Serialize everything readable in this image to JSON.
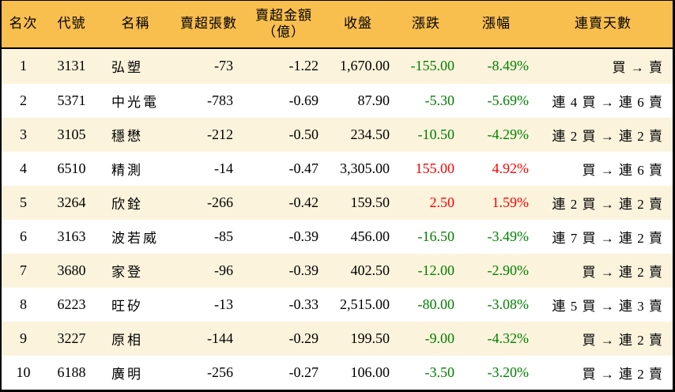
{
  "colors": {
    "header_bg": "#F8BE4E",
    "stripe_bg": "#FCF3DC",
    "down_green": "#008000",
    "up_red": "#FB0000",
    "border": "#000000"
  },
  "chart_data": {
    "type": "table",
    "title": "",
    "legend": "漲跌/漲幅: 綠=下跌, 紅=上漲; 隔行底色交替",
    "columns": [
      {
        "key": "rank",
        "label": "名次"
      },
      {
        "key": "code",
        "label": "代號"
      },
      {
        "key": "name",
        "label": "名稱"
      },
      {
        "key": "sold_lots",
        "label": "賣超張數"
      },
      {
        "key": "sold_amount",
        "label": "賣超金額\n（億）"
      },
      {
        "key": "close",
        "label": "收盤"
      },
      {
        "key": "change",
        "label": "漲跌"
      },
      {
        "key": "change_pct",
        "label": "漲幅"
      },
      {
        "key": "streak",
        "label": "連賣天數"
      }
    ],
    "rows": [
      {
        "rank": "1",
        "code": "3131",
        "name": "弘塑",
        "sold_lots": "-73",
        "sold_amount": "-1.22",
        "close": "1,670.00",
        "change": "-155.00",
        "change_pct": "-8.49%",
        "direction": "down",
        "streak": "買 → 賣"
      },
      {
        "rank": "2",
        "code": "5371",
        "name": "中光電",
        "sold_lots": "-783",
        "sold_amount": "-0.69",
        "close": "87.90",
        "change": "-5.30",
        "change_pct": "-5.69%",
        "direction": "down",
        "streak": "連 4 買 → 連 6 賣"
      },
      {
        "rank": "3",
        "code": "3105",
        "name": "穩懋",
        "sold_lots": "-212",
        "sold_amount": "-0.50",
        "close": "234.50",
        "change": "-10.50",
        "change_pct": "-4.29%",
        "direction": "down",
        "streak": "連 2 買 → 連 2 賣"
      },
      {
        "rank": "4",
        "code": "6510",
        "name": "精測",
        "sold_lots": "-14",
        "sold_amount": "-0.47",
        "close": "3,305.00",
        "change": "155.00",
        "change_pct": "4.92%",
        "direction": "up",
        "streak": "買 → 連 6 賣"
      },
      {
        "rank": "5",
        "code": "3264",
        "name": "欣銓",
        "sold_lots": "-266",
        "sold_amount": "-0.42",
        "close": "159.50",
        "change": "2.50",
        "change_pct": "1.59%",
        "direction": "up",
        "streak": "連 2 買 → 連 2 賣"
      },
      {
        "rank": "6",
        "code": "3163",
        "name": "波若威",
        "sold_lots": "-85",
        "sold_amount": "-0.39",
        "close": "456.00",
        "change": "-16.50",
        "change_pct": "-3.49%",
        "direction": "down",
        "streak": "連 7 買 → 連 2 賣"
      },
      {
        "rank": "7",
        "code": "3680",
        "name": "家登",
        "sold_lots": "-96",
        "sold_amount": "-0.39",
        "close": "402.50",
        "change": "-12.00",
        "change_pct": "-2.90%",
        "direction": "down",
        "streak": "買 → 連 2 賣"
      },
      {
        "rank": "8",
        "code": "6223",
        "name": "旺矽",
        "sold_lots": "-13",
        "sold_amount": "-0.33",
        "close": "2,515.00",
        "change": "-80.00",
        "change_pct": "-3.08%",
        "direction": "down",
        "streak": "連 5 買 → 連 3 賣"
      },
      {
        "rank": "9",
        "code": "3227",
        "name": "原相",
        "sold_lots": "-144",
        "sold_amount": "-0.29",
        "close": "199.50",
        "change": "-9.00",
        "change_pct": "-4.32%",
        "direction": "down",
        "streak": "買 → 連 2 賣"
      },
      {
        "rank": "10",
        "code": "6188",
        "name": "廣明",
        "sold_lots": "-256",
        "sold_amount": "-0.27",
        "close": "106.00",
        "change": "-3.50",
        "change_pct": "-3.20%",
        "direction": "down",
        "streak": "買 → 連 2 賣"
      }
    ]
  }
}
